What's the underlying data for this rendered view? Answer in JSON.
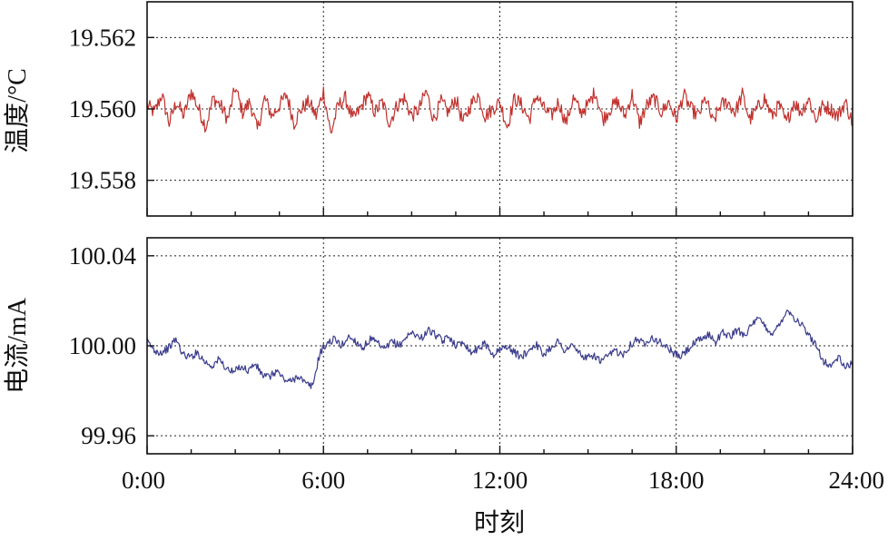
{
  "chart_data": [
    {
      "type": "line",
      "ylabel": "温度/°C",
      "xlabel": "",
      "x_ticks": [
        "0:00",
        "6:00",
        "12:00",
        "18:00",
        "24:00"
      ],
      "xlim": [
        0,
        24
      ],
      "y_ticks": [
        "19.558",
        "19.560",
        "19.562"
      ],
      "y_tick_values": [
        19.558,
        19.56,
        19.562
      ],
      "ylim": [
        19.557,
        19.563
      ],
      "grid": true,
      "series": [
        {
          "color": "#c0322e",
          "x_start": 0,
          "x_end": 24,
          "values": [
            19.5601,
            19.5599,
            19.5604,
            19.5596,
            19.5602,
            19.5598,
            19.5605,
            19.56,
            19.5595,
            19.5603,
            19.5601,
            19.5597,
            19.5606,
            19.5599,
            19.5602,
            19.5594,
            19.5603,
            19.5598,
            19.5601,
            19.5604,
            19.5596,
            19.56,
            19.5602,
            19.5598,
            19.5605,
            19.5593,
            19.5601,
            19.5603,
            19.5597,
            19.56,
            19.5604,
            19.5599,
            19.5602,
            19.5596,
            19.5601,
            19.5603,
            19.5598,
            19.56,
            19.5605,
            19.5597,
            19.5602,
            19.5599,
            19.5603,
            19.5596,
            19.5601,
            19.5604,
            19.5598,
            19.56,
            19.5602,
            19.5595,
            19.5603,
            19.5601,
            19.5597,
            19.5604,
            19.56,
            19.5598,
            19.5602,
            19.5596,
            19.5603,
            19.5599,
            19.5601,
            19.5605,
            19.5597,
            19.56,
            19.5602,
            19.5598,
            19.5604,
            19.5596,
            19.5601,
            19.5603,
            19.5599,
            19.5602,
            19.5597,
            19.5604,
            19.56,
            19.5598,
            19.5603,
            19.5596,
            19.5601,
            19.5602,
            19.5599,
            19.5604,
            19.5597,
            19.56,
            19.5603,
            19.5598,
            19.5601,
            19.5596,
            19.5602,
            19.5599,
            19.5603,
            19.5597,
            19.5601,
            19.56,
            19.5598,
            19.5602,
            19.5596
          ]
        }
      ]
    },
    {
      "type": "line",
      "ylabel": "电流/mA",
      "xlabel": "时刻",
      "x_ticks": [
        "0:00",
        "6:00",
        "12:00",
        "18:00",
        "24:00"
      ],
      "xlim": [
        0,
        24
      ],
      "y_ticks": [
        "99.96",
        "100.00",
        "100.04"
      ],
      "y_tick_values": [
        99.96,
        100.0,
        100.04
      ],
      "ylim": [
        99.952,
        100.048
      ],
      "grid": true,
      "series": [
        {
          "color": "#3b3d8c",
          "x_start": 0,
          "x_end": 24,
          "values": [
            100.002,
            99.998,
            99.997,
            99.999,
            100.003,
            99.996,
            99.995,
            99.997,
            99.993,
            99.991,
            99.994,
            99.99,
            99.988,
            99.991,
            99.989,
            99.992,
            99.987,
            99.986,
            99.989,
            99.985,
            99.984,
            99.987,
            99.983,
            99.982,
            99.997,
            100.001,
            100.003,
            100.0,
            100.004,
            100.002,
            99.999,
            100.003,
            100.001,
            99.998,
            100.002,
            100.0,
            100.004,
            100.006,
            100.003,
            100.007,
            100.005,
            100.002,
            100.004,
            100.0,
            100.002,
            99.997,
            99.999,
            100.001,
            99.996,
            99.998,
            100.0,
            99.997,
            99.995,
            99.998,
            100.001,
            99.996,
            99.999,
            100.002,
            99.998,
            100.0,
            99.997,
            99.994,
            99.996,
            99.993,
            99.995,
            99.998,
            99.996,
            100.0,
            100.003,
            100.001,
            100.004,
            100.002,
            100.0,
            99.997,
            99.995,
            99.998,
            100.001,
            100.003,
            100.005,
            100.002,
            100.006,
            100.004,
            100.007,
            100.005,
            100.009,
            100.012,
            100.008,
            100.005,
            100.011,
            100.016,
            100.012,
            100.009,
            100.004,
            100.0,
            99.993,
            99.991,
            99.995,
            99.99,
            99.993
          ]
        }
      ]
    }
  ]
}
